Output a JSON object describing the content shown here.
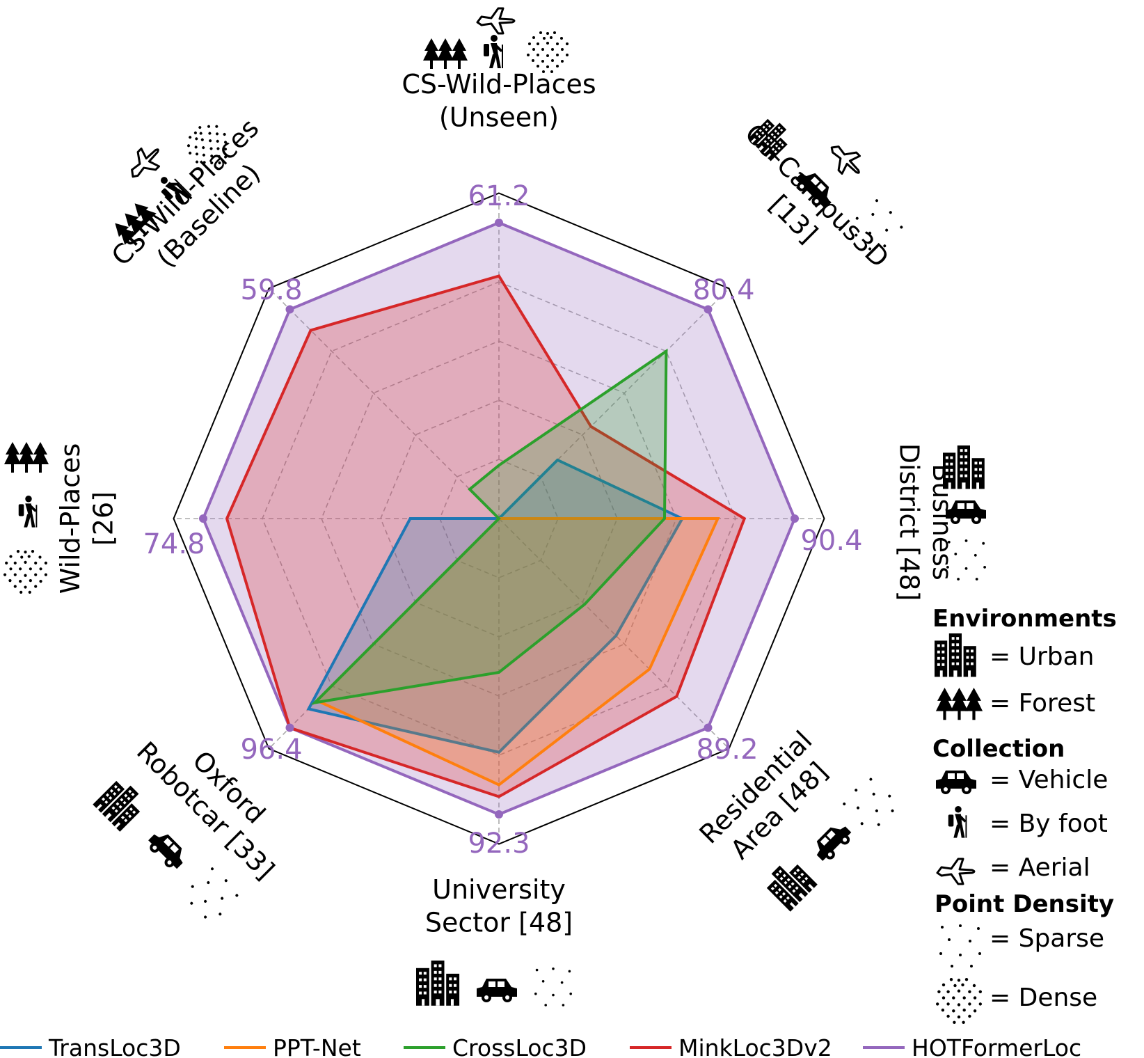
{
  "chart_data": {
    "type": "radar",
    "axes": [
      {
        "label": [
          "CS-Wild-Places",
          "(Unseen)"
        ],
        "peak": "61.2"
      },
      {
        "label": [
          "CS-Campus3D",
          "[13]"
        ],
        "peak": "80.4"
      },
      {
        "label": [
          "Business",
          "District [48]"
        ],
        "peak": "90.4"
      },
      {
        "label": [
          "Residential",
          "Area [48]"
        ],
        "peak": "89.2"
      },
      {
        "label": [
          "University",
          "Sector [48]"
        ],
        "peak": "92.3"
      },
      {
        "label": [
          "Oxford",
          "Robotcar [33]"
        ],
        "peak": "96.4"
      },
      {
        "label": [
          "Wild-Places",
          "[26]"
        ],
        "peak": "74.8"
      },
      {
        "label": [
          "CS-Wild-Places",
          "(Baseline)"
        ],
        "peak": "59.8"
      }
    ],
    "series": [
      {
        "name": "TransLoc3D",
        "color": "#1f77b4",
        "values": [
          0.0,
          0.28,
          0.62,
          0.56,
          0.79,
          0.91,
          0.3,
          0.0
        ]
      },
      {
        "name": "PPT-Net",
        "color": "#ff7f0e",
        "values": [
          0.0,
          0.0,
          0.74,
          0.72,
          0.9,
          0.87,
          0.0,
          0.0
        ]
      },
      {
        "name": "CrossLoc3D",
        "color": "#2ca02c",
        "values": [
          0.18,
          0.8,
          0.56,
          0.41,
          0.52,
          0.88,
          0.0,
          0.14
        ]
      },
      {
        "name": "MinkLoc3Dv2",
        "color": "#d62728",
        "values": [
          0.82,
          0.44,
          0.83,
          0.85,
          0.94,
          1.0,
          0.92,
          0.9
        ]
      },
      {
        "name": "HOTFormerLoc",
        "color": "#9467bd",
        "values": [
          1.0,
          1.0,
          1.0,
          1.0,
          1.0,
          1.0,
          1.0,
          1.0
        ]
      }
    ],
    "scale": {
      "min": 0,
      "max": 1,
      "rings": 4
    }
  },
  "key": {
    "environments_title": "Environments",
    "urban": "= Urban",
    "forest": "= Forest",
    "collection_title": "Collection",
    "vehicle": "= Vehicle",
    "by_foot": "= By foot",
    "aerial": "= Aerial",
    "density_title": "Point Density",
    "sparse": "= Sparse",
    "dense": "= Dense"
  }
}
